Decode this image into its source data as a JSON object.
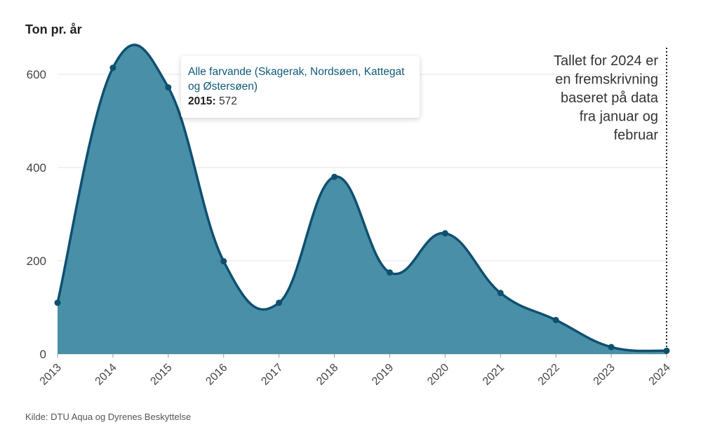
{
  "chart_data": {
    "type": "area",
    "ylabel": "Ton pr. år",
    "x": [
      "2013",
      "2014",
      "2015",
      "2016",
      "2017",
      "2018",
      "2019",
      "2020",
      "2021",
      "2022",
      "2023",
      "2024"
    ],
    "series": [
      {
        "name": "Alle farvande (Skagerak, Nordsøen, Kattegat og Østersøen)",
        "values": [
          110,
          614,
          572,
          199,
          110,
          380,
          175,
          259,
          131,
          73,
          15,
          7
        ]
      }
    ],
    "ylim": [
      0,
      660
    ],
    "yticks": [
      "0",
      "200",
      "400",
      "600"
    ],
    "grid": true,
    "colors": {
      "fill": "#4a8fa8",
      "line": "#0e5070",
      "marker": "#0e5070"
    },
    "annotation": {
      "lines": [
        "Tallet for 2024 er",
        "en fremskrivning",
        "baseret på data",
        "fra januar og",
        "februar"
      ]
    },
    "tooltip": {
      "series_name": "Alle farvande (Skagerak, Nordsøen, Kattegat og Østersøen)",
      "year_label": "2015:",
      "value": "572"
    },
    "source": "Kilde: DTU Aqua og Dyrenes Beskyttelse"
  }
}
